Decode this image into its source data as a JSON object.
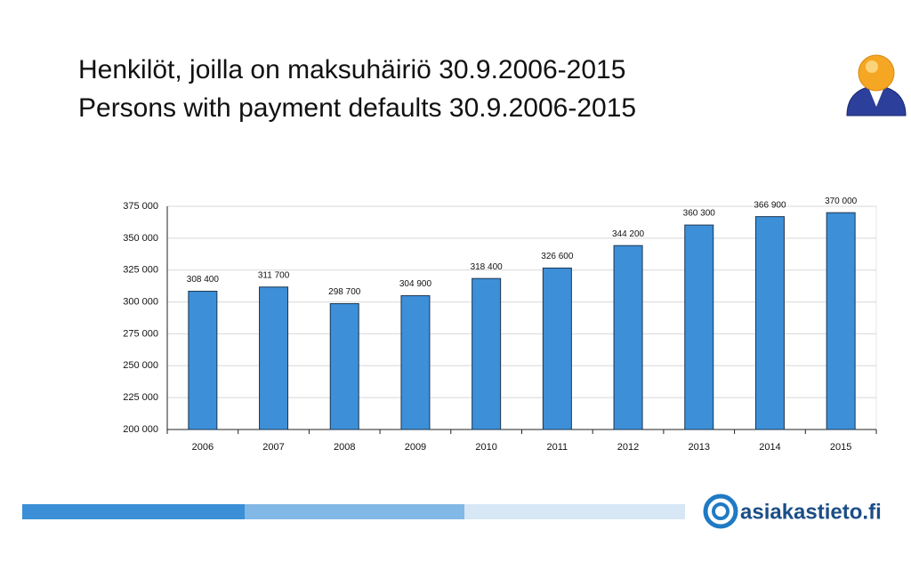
{
  "chart_data": {
    "type": "bar",
    "title": "Henkilöt, joilla on maksuhäiriö 30.9.2006-2015",
    "subtitle": "Persons with payment defaults 30.9.2006-2015",
    "categories": [
      "2006",
      "2007",
      "2008",
      "2009",
      "2010",
      "2011",
      "2012",
      "2013",
      "2014",
      "2015"
    ],
    "values": [
      308400,
      311700,
      298700,
      304900,
      318400,
      326600,
      344200,
      360300,
      366900,
      370000
    ],
    "value_labels": [
      "308 400",
      "311 700",
      "298 700",
      "304 900",
      "318 400",
      "326 600",
      "344 200",
      "360 300",
      "366 900",
      "370 000"
    ],
    "color": "#3d8fd8",
    "ylim": [
      200000,
      375000
    ],
    "yticks": [
      {
        "value": 200000,
        "label": "200 000"
      },
      {
        "value": 225000,
        "label": "225 000"
      },
      {
        "value": 250000,
        "label": "250 000"
      },
      {
        "value": 275000,
        "label": "275 000"
      },
      {
        "value": 300000,
        "label": "300 000"
      },
      {
        "value": 325000,
        "label": "325 000"
      },
      {
        "value": 350000,
        "label": "350 000"
      },
      {
        "value": 375000,
        "label": "375 000"
      }
    ],
    "grid": true
  },
  "footer": {
    "logo": "asiakastieto.fi"
  }
}
